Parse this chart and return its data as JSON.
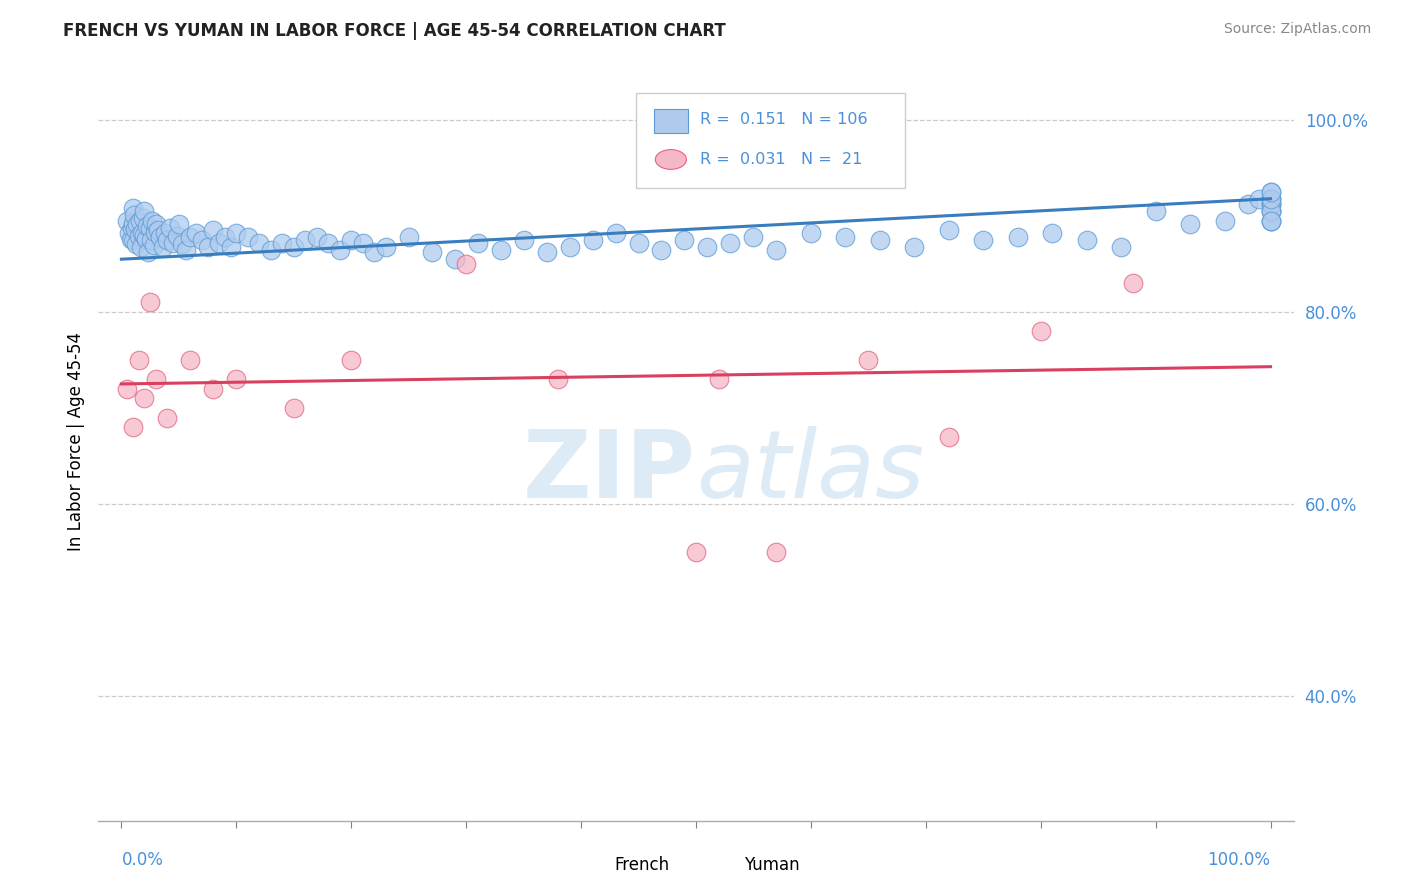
{
  "title": "FRENCH VS YUMAN IN LABOR FORCE | AGE 45-54 CORRELATION CHART",
  "source": "Source: ZipAtlas.com",
  "ylabel": "In Labor Force | Age 45-54",
  "xlim": [
    -0.02,
    1.02
  ],
  "ylim": [
    0.27,
    1.06
  ],
  "french_R": 0.151,
  "french_N": 106,
  "yuman_R": 0.031,
  "yuman_N": 21,
  "french_color": "#aecbee",
  "french_edge_color": "#5b9bd5",
  "yuman_color": "#f4b8c8",
  "yuman_edge_color": "#e8607a",
  "french_line_color": "#3a7dbf",
  "yuman_line_color": "#d94060",
  "background_color": "#ffffff",
  "watermark_zip": "ZIP",
  "watermark_atlas": "atlas",
  "grid_color": "#cccccc",
  "label_color": "#4a90d9",
  "french_trend_x0": 0.0,
  "french_trend_y0": 0.855,
  "french_trend_x1": 1.0,
  "french_trend_y1": 0.918,
  "yuman_trend_x0": 0.0,
  "yuman_trend_y0": 0.725,
  "yuman_trend_x1": 1.0,
  "yuman_trend_y1": 0.743,
  "ytick_values": [
    0.4,
    0.6,
    0.8,
    1.0
  ],
  "ytick_labels": [
    "40.0%",
    "60.0%",
    "80.0%",
    "100.0%"
  ],
  "french_x": [
    0.005,
    0.007,
    0.008,
    0.009,
    0.01,
    0.01,
    0.01,
    0.011,
    0.012,
    0.013,
    0.014,
    0.015,
    0.016,
    0.017,
    0.018,
    0.019,
    0.02,
    0.02,
    0.021,
    0.022,
    0.023,
    0.025,
    0.026,
    0.027,
    0.028,
    0.029,
    0.03,
    0.032,
    0.034,
    0.036,
    0.038,
    0.04,
    0.042,
    0.045,
    0.048,
    0.05,
    0.053,
    0.056,
    0.06,
    0.065,
    0.07,
    0.075,
    0.08,
    0.085,
    0.09,
    0.095,
    0.1,
    0.11,
    0.12,
    0.13,
    0.14,
    0.15,
    0.16,
    0.17,
    0.18,
    0.19,
    0.2,
    0.21,
    0.22,
    0.23,
    0.25,
    0.27,
    0.29,
    0.31,
    0.33,
    0.35,
    0.37,
    0.39,
    0.41,
    0.43,
    0.45,
    0.47,
    0.49,
    0.51,
    0.53,
    0.55,
    0.57,
    0.6,
    0.63,
    0.66,
    0.69,
    0.72,
    0.75,
    0.78,
    0.81,
    0.84,
    0.87,
    0.9,
    0.93,
    0.96,
    0.98,
    0.99,
    1.0,
    1.0,
    1.0,
    1.0,
    1.0,
    1.0,
    1.0,
    1.0,
    1.0,
    1.0,
    1.0,
    1.0,
    1.0,
    1.0
  ],
  "french_y": [
    0.895,
    0.882,
    0.876,
    0.888,
    0.908,
    0.893,
    0.875,
    0.901,
    0.886,
    0.871,
    0.892,
    0.879,
    0.895,
    0.868,
    0.882,
    0.898,
    0.905,
    0.88,
    0.876,
    0.89,
    0.862,
    0.888,
    0.875,
    0.895,
    0.87,
    0.883,
    0.892,
    0.885,
    0.878,
    0.868,
    0.882,
    0.875,
    0.888,
    0.872,
    0.879,
    0.892,
    0.871,
    0.865,
    0.878,
    0.882,
    0.875,
    0.868,
    0.885,
    0.872,
    0.878,
    0.868,
    0.882,
    0.878,
    0.872,
    0.865,
    0.872,
    0.868,
    0.875,
    0.878,
    0.872,
    0.865,
    0.875,
    0.872,
    0.862,
    0.868,
    0.878,
    0.862,
    0.855,
    0.872,
    0.865,
    0.875,
    0.862,
    0.868,
    0.875,
    0.882,
    0.872,
    0.865,
    0.875,
    0.868,
    0.872,
    0.878,
    0.865,
    0.882,
    0.878,
    0.875,
    0.868,
    0.885,
    0.875,
    0.878,
    0.882,
    0.875,
    0.868,
    0.905,
    0.892,
    0.895,
    0.912,
    0.918,
    0.925,
    0.918,
    0.912,
    0.905,
    0.895,
    0.912,
    0.918,
    0.905,
    0.895,
    0.912,
    0.905,
    0.918,
    0.895,
    0.925
  ],
  "yuman_x": [
    0.005,
    0.01,
    0.015,
    0.02,
    0.025,
    0.03,
    0.04,
    0.06,
    0.08,
    0.1,
    0.15,
    0.2,
    0.3,
    0.38,
    0.5,
    0.52,
    0.57,
    0.65,
    0.72,
    0.8,
    0.88
  ],
  "yuman_y": [
    0.72,
    0.68,
    0.75,
    0.71,
    0.81,
    0.73,
    0.69,
    0.75,
    0.72,
    0.73,
    0.7,
    0.75,
    0.85,
    0.73,
    0.55,
    0.73,
    0.55,
    0.75,
    0.67,
    0.78,
    0.83
  ]
}
